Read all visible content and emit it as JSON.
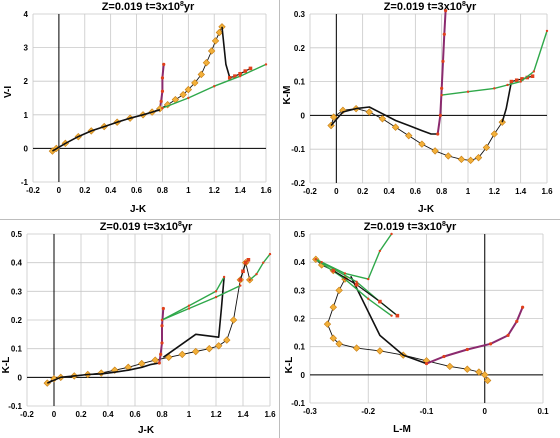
{
  "figure": {
    "dividers": true
  },
  "colors": {
    "grid": "#c8c8c8",
    "axis": "#000000",
    "black_track": "#111111",
    "purple_track": "#8b2a6e",
    "red_marker": "#e0401c",
    "orange_marker": "#f2b03a",
    "orange_outline": "#c77d12",
    "green_track": "#2fa84a",
    "divider": "#bdbdbd"
  },
  "chart_data": [
    {
      "id": "vi-jk",
      "type": "line",
      "title_main": "Z=0.019  t=3x10",
      "title_exp": "8",
      "title_unit": "yr",
      "xlabel": "J-K",
      "ylabel": "V-I",
      "xlim": [
        -0.2,
        1.6
      ],
      "ylim": [
        -1,
        4
      ],
      "xticks": [
        -0.2,
        0,
        0.2,
        0.4,
        0.6,
        0.8,
        1,
        1.2,
        1.4,
        1.6
      ],
      "yticks": [
        -1,
        0,
        1,
        2,
        3,
        4
      ],
      "grid": true,
      "series": [
        {
          "style": "purple",
          "x": [
            0.81,
            0.8,
            0.8,
            0.79,
            0.78
          ],
          "y": [
            2.5,
            2.1,
            1.7,
            1.4,
            1.18
          ]
        },
        {
          "style": "orange",
          "x": [
            -0.05,
            -0.02,
            0.05,
            0.15,
            0.25,
            0.35,
            0.45,
            0.55,
            0.65,
            0.72,
            0.78,
            0.84,
            0.9,
            0.96,
            1.0,
            1.05,
            1.1,
            1.14,
            1.18,
            1.21,
            1.24,
            1.26
          ],
          "y": [
            -0.08,
            0.0,
            0.15,
            0.35,
            0.52,
            0.65,
            0.78,
            0.9,
            1.0,
            1.08,
            1.18,
            1.3,
            1.45,
            1.6,
            1.75,
            1.95,
            2.2,
            2.55,
            2.9,
            3.2,
            3.45,
            3.62
          ]
        },
        {
          "style": "black",
          "x": [
            -0.05,
            0.05,
            0.15,
            0.25,
            0.35,
            0.45,
            0.55,
            0.65,
            0.72,
            0.78
          ],
          "y": [
            -0.08,
            0.15,
            0.35,
            0.52,
            0.65,
            0.78,
            0.9,
            1.0,
            1.08,
            1.15
          ]
        },
        {
          "style": "black",
          "x": [
            1.26,
            1.29,
            1.32
          ],
          "y": [
            3.62,
            2.5,
            2.1
          ]
        },
        {
          "style": "red",
          "x": [
            1.32,
            1.36,
            1.4,
            1.44,
            1.48
          ],
          "y": [
            2.1,
            2.15,
            2.22,
            2.3,
            2.38
          ]
        },
        {
          "style": "green",
          "x": [
            0.8,
            1.0,
            1.2,
            1.4,
            1.6
          ],
          "y": [
            1.2,
            1.5,
            1.85,
            2.15,
            2.5
          ]
        }
      ]
    },
    {
      "id": "km-jk",
      "type": "line",
      "title_main": "Z=0.019  t=3x10",
      "title_exp": "8",
      "title_unit": "yr",
      "xlabel": "J-K",
      "ylabel": "K-M",
      "xlim": [
        -0.2,
        1.6
      ],
      "ylim": [
        -0.2,
        0.3
      ],
      "xticks": [
        -0.2,
        0,
        0.2,
        0.4,
        0.6,
        0.8,
        1,
        1.2,
        1.4,
        1.6
      ],
      "yticks": [
        -0.2,
        -0.1,
        0,
        0.1,
        0.2,
        0.3
      ],
      "grid": true,
      "series": [
        {
          "style": "orange",
          "x": [
            -0.04,
            -0.02,
            0.05,
            0.15,
            0.25,
            0.35,
            0.45,
            0.55,
            0.65,
            0.75,
            0.85,
            0.95,
            1.02,
            1.08,
            1.14,
            1.2,
            1.26
          ],
          "y": [
            -0.03,
            -0.005,
            0.015,
            0.02,
            0.01,
            -0.01,
            -0.035,
            -0.06,
            -0.085,
            -0.105,
            -0.12,
            -0.13,
            -0.133,
            -0.125,
            -0.095,
            -0.055,
            -0.02
          ]
        },
        {
          "style": "black",
          "x": [
            -0.04,
            0.05,
            0.15,
            0.25,
            0.35,
            0.45,
            0.55,
            0.65,
            0.72,
            0.77
          ],
          "y": [
            -0.03,
            0.01,
            0.02,
            0.025,
            0.005,
            -0.015,
            -0.03,
            -0.045,
            -0.055,
            -0.055
          ]
        },
        {
          "style": "purple",
          "x": [
            0.77,
            0.79,
            0.8,
            0.81,
            0.82,
            0.83
          ],
          "y": [
            -0.055,
            0.0,
            0.08,
            0.16,
            0.24,
            0.31
          ]
        },
        {
          "style": "black",
          "x": [
            1.26,
            1.29,
            1.33
          ],
          "y": [
            -0.02,
            0.02,
            0.1
          ]
        },
        {
          "style": "red",
          "x": [
            1.33,
            1.37,
            1.41,
            1.45,
            1.49
          ],
          "y": [
            0.1,
            0.104,
            0.108,
            0.112,
            0.116
          ]
        },
        {
          "style": "green",
          "x": [
            0.8,
            1.0,
            1.2,
            1.3,
            1.4,
            1.5,
            1.6
          ],
          "y": [
            0.06,
            0.07,
            0.08,
            0.09,
            0.1,
            0.13,
            0.25
          ]
        }
      ]
    },
    {
      "id": "kl-jk",
      "type": "line",
      "title_main": "Z=0.019  t=3x10",
      "title_exp": "8",
      "title_unit": "yr",
      "xlabel": "J-K",
      "ylabel": "K-L",
      "xlim": [
        -0.2,
        1.6
      ],
      "ylim": [
        -0.1,
        0.5
      ],
      "xticks": [
        -0.2,
        0,
        0.2,
        0.4,
        0.6,
        0.8,
        1,
        1.2,
        1.4,
        1.6
      ],
      "yticks": [
        -0.1,
        0,
        0.1,
        0.2,
        0.3,
        0.4,
        0.5
      ],
      "grid": true,
      "series": [
        {
          "style": "orange",
          "x": [
            -0.05,
            0.0,
            0.05,
            0.15,
            0.25,
            0.35,
            0.45,
            0.55,
            0.65,
            0.75,
            0.85,
            0.95,
            1.05,
            1.15,
            1.22,
            1.28,
            1.33,
            1.38,
            1.42,
            1.45
          ],
          "y": [
            -0.02,
            -0.005,
            0.0,
            0.005,
            0.01,
            0.015,
            0.025,
            0.035,
            0.048,
            0.06,
            0.07,
            0.08,
            0.09,
            0.1,
            0.11,
            0.13,
            0.2,
            0.34,
            0.4,
            0.34
          ]
        },
        {
          "style": "black",
          "x": [
            -0.05,
            0.05,
            0.15,
            0.25,
            0.35,
            0.45,
            0.55,
            0.65,
            0.72,
            0.78
          ],
          "y": [
            -0.02,
            0.0,
            0.005,
            0.01,
            0.012,
            0.018,
            0.025,
            0.035,
            0.045,
            0.05
          ]
        },
        {
          "style": "purple",
          "x": [
            0.78,
            0.79,
            0.8,
            0.8,
            0.81
          ],
          "y": [
            0.05,
            0.08,
            0.12,
            0.18,
            0.24
          ]
        },
        {
          "style": "black",
          "x": [
            0.81,
            1.05,
            1.22,
            1.24,
            1.26
          ],
          "y": [
            0.07,
            0.15,
            0.14,
            0.24,
            0.35
          ]
        },
        {
          "style": "red",
          "x": [
            1.38,
            1.4,
            1.42,
            1.44
          ],
          "y": [
            0.34,
            0.37,
            0.4,
            0.41
          ]
        },
        {
          "style": "green",
          "x": [
            0.8,
            1.0,
            1.2,
            1.26
          ],
          "y": [
            0.2,
            0.25,
            0.3,
            0.35
          ]
        },
        {
          "style": "green",
          "x": [
            0.8,
            1.0,
            1.2,
            1.38
          ],
          "y": [
            0.2,
            0.24,
            0.28,
            0.32
          ]
        },
        {
          "style": "green",
          "x": [
            1.45,
            1.5,
            1.55,
            1.6
          ],
          "y": [
            0.34,
            0.36,
            0.4,
            0.43
          ]
        }
      ]
    },
    {
      "id": "kl-lm",
      "type": "line",
      "title_main": "Z=0.019  t=3x10",
      "title_exp": "8",
      "title_unit": "yr",
      "xlabel": "L-M",
      "ylabel": "K-L",
      "xlim": [
        -0.3,
        0.1
      ],
      "ylim": [
        -0.1,
        0.5
      ],
      "xticks": [
        -0.3,
        -0.2,
        -0.1,
        0,
        0.1
      ],
      "yticks": [
        -0.1,
        0,
        0.1,
        0.2,
        0.3,
        0.4,
        0.5
      ],
      "grid": true,
      "series": [
        {
          "style": "orange",
          "x": [
            0.005,
            0.0,
            -0.01,
            -0.03,
            -0.06,
            -0.1,
            -0.14,
            -0.18,
            -0.22,
            -0.25,
            -0.26,
            -0.27,
            -0.26,
            -0.25,
            -0.24,
            -0.26,
            -0.28,
            -0.29
          ],
          "y": [
            -0.02,
            0.0,
            0.01,
            0.02,
            0.03,
            0.05,
            0.07,
            0.085,
            0.095,
            0.11,
            0.13,
            0.18,
            0.24,
            0.3,
            0.34,
            0.37,
            0.39,
            0.41
          ]
        },
        {
          "style": "black",
          "x": [
            -0.1,
            -0.14,
            -0.18,
            -0.23
          ],
          "y": [
            0.04,
            0.07,
            0.14,
            0.35
          ]
        },
        {
          "style": "purple",
          "x": [
            -0.1,
            -0.07,
            -0.03,
            0.01,
            0.04,
            0.055,
            0.065
          ],
          "y": [
            0.04,
            0.065,
            0.09,
            0.11,
            0.14,
            0.19,
            0.24
          ]
        },
        {
          "style": "green",
          "x": [
            -0.29,
            -0.24,
            -0.2,
            -0.18,
            -0.16
          ],
          "y": [
            0.41,
            0.36,
            0.34,
            0.44,
            0.5
          ]
        },
        {
          "style": "green",
          "x": [
            -0.29,
            -0.24,
            -0.2,
            -0.16
          ],
          "y": [
            0.41,
            0.34,
            0.27,
            0.21
          ]
        },
        {
          "style": "green",
          "x": [
            -0.28,
            -0.22,
            -0.18,
            -0.15
          ],
          "y": [
            0.4,
            0.33,
            0.26,
            0.21
          ]
        },
        {
          "style": "red",
          "x": [
            -0.26,
            -0.22,
            -0.18,
            -0.15
          ],
          "y": [
            0.37,
            0.32,
            0.26,
            0.21
          ]
        }
      ]
    }
  ]
}
